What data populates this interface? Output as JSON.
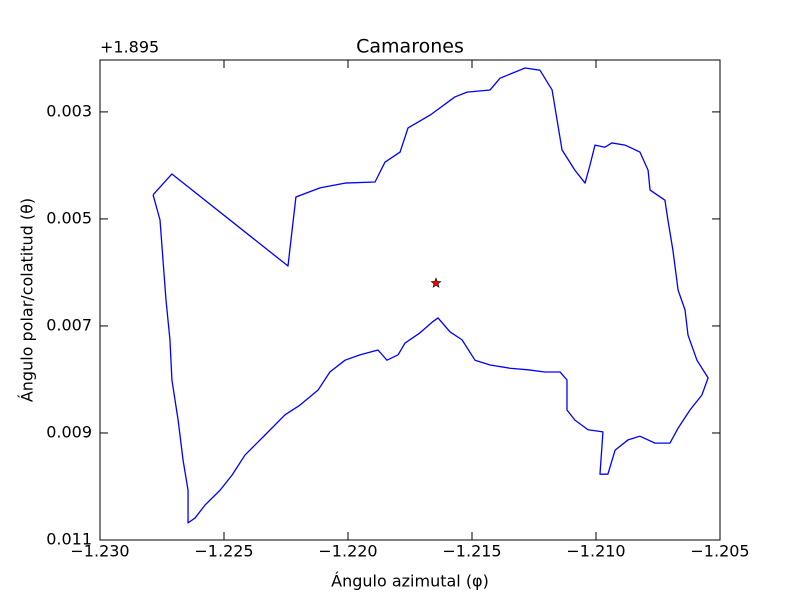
{
  "chart_data": {
    "type": "line",
    "title": "Camarones",
    "xlabel": "Ángulo azimutal (φ)",
    "ylabel": "Ángulo polar/colatitud (θ)",
    "y_offset_text": "+1.895",
    "xlim": [
      -1.23,
      -1.205
    ],
    "ylim": [
      0.011,
      0.00203
    ],
    "xticks": [
      {
        "value": -1.23,
        "label": "−1.230"
      },
      {
        "value": -1.225,
        "label": "−1.225"
      },
      {
        "value": -1.22,
        "label": "−1.220"
      },
      {
        "value": -1.215,
        "label": "−1.215"
      },
      {
        "value": -1.21,
        "label": "−1.210"
      },
      {
        "value": -1.205,
        "label": "−1.205"
      }
    ],
    "yticks": [
      0.003,
      0.005,
      0.007,
      0.009,
      0.011
    ],
    "grid": false,
    "series": [
      {
        "color": "#0000ff",
        "marker": "none",
        "x": [
          -1.22786,
          -1.2271,
          -1.22242,
          -1.2221,
          -1.22113,
          -1.22012,
          -1.21891,
          -1.21851,
          -1.2179,
          -1.21758,
          -1.21669,
          -1.21569,
          -1.2152,
          -1.21427,
          -1.21387,
          -1.21286,
          -1.21226,
          -1.21177,
          -1.21157,
          -1.21137,
          -1.21085,
          -1.21044,
          -1.21024,
          -1.21004,
          -1.20964,
          -1.20936,
          -1.20883,
          -1.20823,
          -1.2079,
          -1.20782,
          -1.20722,
          -1.2071,
          -1.2069,
          -1.20669,
          -1.20641,
          -1.20629,
          -1.20593,
          -1.20548,
          -1.20573,
          -1.20621,
          -1.20669,
          -1.20702,
          -1.20762,
          -1.20823,
          -1.20871,
          -1.20923,
          -1.20952,
          -1.20984,
          -1.20972,
          -1.21032,
          -1.21085,
          -1.21117,
          -1.21117,
          -1.21145,
          -1.21206,
          -1.21274,
          -1.21347,
          -1.21427,
          -1.21488,
          -1.2154,
          -1.21589,
          -1.21637,
          -1.21661,
          -1.2171,
          -1.2177,
          -1.21798,
          -1.21843,
          -1.21879,
          -1.21952,
          -1.22012,
          -1.22073,
          -1.22121,
          -1.22194,
          -1.22254,
          -1.22335,
          -1.22415,
          -1.22468,
          -1.22516,
          -1.22577,
          -1.22617,
          -1.22645,
          -1.22645,
          -1.22665,
          -1.22685,
          -1.2271,
          -1.22718,
          -1.22734,
          -1.22746,
          -1.22758,
          -1.22786
        ],
        "values": [
          0.00455,
          0.00416,
          0.00588,
          0.00459,
          0.00442,
          0.00433,
          0.00431,
          0.00394,
          0.00375,
          0.0033,
          0.00306,
          0.00272,
          0.00263,
          0.00259,
          0.00237,
          0.00218,
          0.00222,
          0.00259,
          0.00315,
          0.00371,
          0.00409,
          0.00433,
          0.00399,
          0.00362,
          0.00366,
          0.00358,
          0.00362,
          0.00375,
          0.00409,
          0.00446,
          0.00465,
          0.00502,
          0.00558,
          0.00633,
          0.0067,
          0.00717,
          0.00764,
          0.00797,
          0.00829,
          0.00857,
          0.00891,
          0.00919,
          0.00919,
          0.00906,
          0.00913,
          0.00932,
          0.00977,
          0.00977,
          0.00898,
          0.00894,
          0.00876,
          0.00857,
          0.00801,
          0.00786,
          0.00786,
          0.00782,
          0.00779,
          0.00773,
          0.00764,
          0.00726,
          0.00711,
          0.00685,
          0.00693,
          0.00713,
          0.00732,
          0.00754,
          0.00764,
          0.00745,
          0.00754,
          0.00764,
          0.00786,
          0.0082,
          0.00848,
          0.00866,
          0.00904,
          0.00941,
          0.00979,
          0.01007,
          0.01035,
          0.01059,
          0.01068,
          0.01007,
          0.00951,
          0.00876,
          0.00801,
          0.00726,
          0.00651,
          0.00577,
          0.00502,
          0.00455
        ]
      },
      {
        "color": "#ff0000",
        "marker": "star",
        "x": [
          -1.21645
        ],
        "values": [
          0.0062
        ]
      }
    ]
  }
}
